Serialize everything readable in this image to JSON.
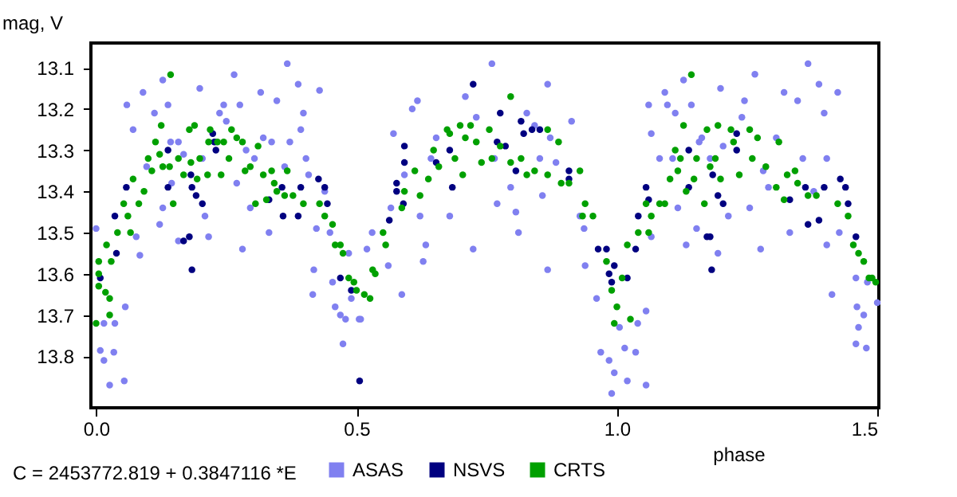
{
  "chart_data": {
    "type": "scatter",
    "xlabel": "phase",
    "ylabel": "mag, V",
    "annotations": [
      "C = 2453772.819 + 0.3847116 *E"
    ],
    "xlim": [
      -0.01,
      1.503
    ],
    "ylim": [
      13.925,
      13.04
    ],
    "xticks": [
      {
        "value": 0,
        "label": "0.0"
      },
      {
        "value": 0.5,
        "label": "0.5"
      },
      {
        "value": 1,
        "label": "1.0"
      },
      {
        "value": 1.5,
        "label": "1.5"
      }
    ],
    "yticks": [
      13.1,
      13.2,
      13.3,
      13.4,
      13.5,
      13.6,
      13.7,
      13.8
    ],
    "grid": false,
    "legend": "bottom",
    "marker": "circle",
    "series": [
      {
        "name": "ASAS",
        "color": "#8080f0",
        "x": [
          0.0,
          0.008,
          0.015,
          0.026,
          0.015,
          0.034,
          0.036,
          0.056,
          0.054,
          0.059,
          0.071,
          0.077,
          0.084,
          0.09,
          0.097,
          0.112,
          0.122,
          0.128,
          0.138,
          0.143,
          0.145,
          0.128,
          0.158,
          0.158,
          0.168,
          0.199,
          0.204,
          0.209,
          0.216,
          0.23,
          0.237,
          0.245,
          0.25,
          0.265,
          0.27,
          0.281,
          0.276,
          0.288,
          0.296,
          0.304,
          0.316,
          0.321,
          0.337,
          0.332,
          0.347,
          0.367,
          0.362,
          0.372,
          0.388,
          0.393,
          0.398,
          0.403,
          0.408,
          0.416,
          0.418,
          0.423,
          0.429,
          0.439,
          0.449,
          0.454,
          0.459,
          0.469,
          0.474,
          0.479,
          0.485,
          0.49,
          0.508,
          0.505,
          0.52,
          0.53,
          0.561,
          0.566,
          0.571,
          0.587,
          0.592,
          0.607,
          0.617,
          0.622,
          0.628,
          0.633,
          0.643,
          0.653,
          0.679,
          0.709,
          0.724,
          0.73,
          0.76,
          0.765,
          0.77,
          0.796,
          0.806,
          0.811,
          0.827,
          0.842,
          0.852,
          0.857,
          0.867,
          0.867,
          0.872,
          0.883,
          0.913,
          0.929,
          0.937,
          0.939,
          0.961,
          0.969,
          0.985,
          0.99,
          0.995,
          1.005,
          1.015,
          1.02,
          1.036,
          1.04,
          1.056,
          1.061,
          1.066,
          1.056,
          1.066,
          1.082,
          1.092,
          1.097,
          1.107,
          1.112,
          1.117,
          1.128,
          1.133,
          1.143,
          1.153,
          1.158,
          1.163,
          1.179,
          1.194,
          1.199,
          1.204,
          1.214,
          1.24,
          1.245,
          1.255,
          1.265,
          1.276,
          1.281,
          1.291,
          1.306,
          1.321,
          1.332,
          1.347,
          1.357,
          1.367,
          1.378,
          1.388,
          1.398,
          1.403,
          1.403,
          1.413,
          1.424,
          1.427,
          1.459,
          1.461,
          1.464,
          1.474,
          1.479,
          1.481,
          1.5,
          1.459
        ],
        "values": [
          13.49,
          13.786,
          13.81,
          13.87,
          13.72,
          13.79,
          13.72,
          13.68,
          13.86,
          13.19,
          13.25,
          13.51,
          13.555,
          13.16,
          13.34,
          13.21,
          13.48,
          13.13,
          13.19,
          13.28,
          13.38,
          13.44,
          13.28,
          13.52,
          13.31,
          13.15,
          13.32,
          13.46,
          13.51,
          13.28,
          13.21,
          13.19,
          13.23,
          13.117,
          13.38,
          13.54,
          13.19,
          13.3,
          13.44,
          13.32,
          13.16,
          13.27,
          13.28,
          13.5,
          13.18,
          13.09,
          13.34,
          13.28,
          13.14,
          13.25,
          13.21,
          13.32,
          13.36,
          13.65,
          13.59,
          13.49,
          13.155,
          13.4,
          13.5,
          13.62,
          13.68,
          13.7,
          13.77,
          13.71,
          13.55,
          13.66,
          13.71,
          13.71,
          13.54,
          13.5,
          13.58,
          13.44,
          13.26,
          13.65,
          13.36,
          13.2,
          13.18,
          13.46,
          13.57,
          13.53,
          13.32,
          13.27,
          13.46,
          13.17,
          13.54,
          13.22,
          13.09,
          13.32,
          13.43,
          13.39,
          13.45,
          13.5,
          13.21,
          13.24,
          13.32,
          13.41,
          13.14,
          13.59,
          13.27,
          13.33,
          13.23,
          13.46,
          13.49,
          13.58,
          13.66,
          13.79,
          13.81,
          13.89,
          13.84,
          13.73,
          13.78,
          13.86,
          13.79,
          13.72,
          13.87,
          13.19,
          13.26,
          13.69,
          13.51,
          13.32,
          13.16,
          13.19,
          13.32,
          13.21,
          13.44,
          13.13,
          13.53,
          13.19,
          13.49,
          13.28,
          13.27,
          13.32,
          13.55,
          13.15,
          13.29,
          13.46,
          13.22,
          13.18,
          13.44,
          13.116,
          13.54,
          13.35,
          13.39,
          13.27,
          13.16,
          13.5,
          13.18,
          13.32,
          13.09,
          13.4,
          13.14,
          13.21,
          13.32,
          13.53,
          13.65,
          13.16,
          13.5,
          13.61,
          13.68,
          13.73,
          13.7,
          13.78,
          13.62,
          13.67,
          13.77
        ]
      },
      {
        "name": "NSVS",
        "color": "#000080",
        "x": [
          0.008,
          0.036,
          0.039,
          0.058,
          0.138,
          0.138,
          0.168,
          0.179,
          0.184,
          0.182,
          0.184,
          0.192,
          0.204,
          0.224,
          0.227,
          0.23,
          0.332,
          0.357,
          0.359,
          0.388,
          0.393,
          0.427,
          0.439,
          0.444,
          0.469,
          0.506,
          0.49,
          0.563,
          0.577,
          0.577,
          0.59,
          0.592,
          0.592,
          0.653,
          0.679,
          0.684,
          0.724,
          0.77,
          0.776,
          0.786,
          0.806,
          0.816,
          0.821,
          0.837,
          0.852,
          0.908,
          0.908,
          0.964,
          0.98,
          0.985,
          0.99,
          0.995,
          1.02,
          1.036,
          1.041,
          1.056,
          1.061,
          1.138,
          1.138,
          1.173,
          1.179,
          1.182,
          1.184,
          1.194,
          1.204,
          1.23,
          1.23,
          1.332,
          1.362,
          1.367,
          1.388,
          1.398,
          1.429,
          1.439,
          1.444,
          1.459
        ],
        "values": [
          13.61,
          13.46,
          13.55,
          13.39,
          13.3,
          13.39,
          13.52,
          13.51,
          13.59,
          13.36,
          13.39,
          13.41,
          13.43,
          13.26,
          13.28,
          13.3,
          13.42,
          13.39,
          13.46,
          13.46,
          13.39,
          13.37,
          13.39,
          13.43,
          13.61,
          13.86,
          13.64,
          13.47,
          13.38,
          13.4,
          13.43,
          13.29,
          13.33,
          13.33,
          13.3,
          13.39,
          13.14,
          13.28,
          13.21,
          13.29,
          13.35,
          13.23,
          13.26,
          13.25,
          13.25,
          13.35,
          13.37,
          13.54,
          13.54,
          13.6,
          13.62,
          13.58,
          13.61,
          13.54,
          13.46,
          13.39,
          13.42,
          13.3,
          13.39,
          13.51,
          13.51,
          13.59,
          13.36,
          13.41,
          13.43,
          13.26,
          13.3,
          13.42,
          13.39,
          13.48,
          13.47,
          13.39,
          13.37,
          13.39,
          13.43,
          13.51
        ]
      },
      {
        "name": "CRTS",
        "color": "#00a000",
        "x": [
          0.0,
          0.005,
          0.005,
          0.005,
          0.018,
          0.02,
          0.026,
          0.026,
          0.029,
          0.041,
          0.053,
          0.061,
          0.066,
          0.071,
          0.082,
          0.092,
          0.1,
          0.107,
          0.114,
          0.122,
          0.125,
          0.128,
          0.143,
          0.141,
          0.148,
          0.158,
          0.168,
          0.179,
          0.182,
          0.189,
          0.194,
          0.199,
          0.214,
          0.216,
          0.219,
          0.233,
          0.24,
          0.245,
          0.255,
          0.26,
          0.27,
          0.281,
          0.286,
          0.296,
          0.306,
          0.311,
          0.321,
          0.327,
          0.337,
          0.342,
          0.347,
          0.362,
          0.367,
          0.378,
          0.398,
          0.429,
          0.439,
          0.454,
          0.459,
          0.469,
          0.474,
          0.485,
          0.495,
          0.5,
          0.531,
          0.536,
          0.515,
          0.526,
          0.551,
          0.556,
          0.587,
          0.592,
          0.612,
          0.622,
          0.638,
          0.648,
          0.658,
          0.674,
          0.679,
          0.689,
          0.699,
          0.704,
          0.709,
          0.719,
          0.73,
          0.74,
          0.755,
          0.76,
          0.776,
          0.796,
          0.796,
          0.816,
          0.827,
          0.842,
          0.867,
          0.867,
          0.888,
          0.893,
          0.908,
          0.929,
          0.939,
          0.934,
          0.954,
          0.98,
          0.99,
          1.0,
          0.995,
          1.01,
          1.02,
          1.026,
          1.041,
          1.056,
          1.066,
          1.061,
          1.082,
          1.092,
          1.102,
          1.112,
          1.117,
          1.122,
          1.128,
          1.133,
          1.143,
          1.148,
          1.153,
          1.168,
          1.173,
          1.179,
          1.189,
          1.194,
          1.199,
          1.219,
          1.224,
          1.235,
          1.255,
          1.26,
          1.27,
          1.286,
          1.306,
          1.311,
          1.321,
          1.327,
          1.342,
          1.347,
          1.367,
          1.383,
          1.424,
          1.444,
          1.454,
          1.464,
          1.474,
          1.484,
          1.49,
          1.497
        ],
        "values": [
          13.72,
          13.57,
          13.63,
          13.6,
          13.645,
          13.53,
          13.7,
          13.66,
          13.57,
          13.5,
          13.43,
          13.46,
          13.5,
          13.37,
          13.43,
          13.4,
          13.32,
          13.35,
          13.28,
          13.31,
          13.24,
          13.34,
          13.117,
          13.34,
          13.43,
          13.32,
          13.36,
          13.25,
          13.33,
          13.24,
          13.37,
          13.32,
          13.36,
          13.28,
          13.25,
          13.28,
          13.36,
          13.28,
          13.32,
          13.25,
          13.27,
          13.28,
          13.35,
          13.34,
          13.43,
          13.29,
          13.36,
          13.42,
          13.35,
          13.38,
          13.4,
          13.41,
          13.35,
          13.41,
          13.43,
          13.43,
          13.46,
          13.48,
          13.53,
          13.53,
          13.55,
          13.61,
          13.62,
          13.64,
          13.59,
          13.6,
          13.65,
          13.66,
          13.5,
          13.53,
          13.44,
          13.4,
          13.35,
          13.41,
          13.37,
          13.3,
          13.34,
          13.25,
          13.26,
          13.32,
          13.24,
          13.36,
          13.27,
          13.24,
          13.28,
          13.33,
          13.25,
          13.32,
          13.29,
          13.17,
          13.33,
          13.32,
          13.36,
          13.35,
          13.25,
          13.36,
          13.28,
          13.38,
          13.38,
          13.35,
          13.43,
          13.46,
          13.46,
          13.57,
          13.64,
          13.68,
          13.72,
          13.61,
          13.53,
          13.71,
          13.5,
          13.43,
          13.46,
          13.5,
          13.43,
          13.43,
          13.37,
          13.3,
          13.35,
          13.32,
          13.24,
          13.4,
          13.117,
          13.37,
          13.32,
          13.43,
          13.25,
          13.34,
          13.32,
          13.24,
          13.37,
          13.25,
          13.28,
          13.36,
          13.25,
          13.32,
          13.27,
          13.34,
          13.39,
          13.28,
          13.42,
          13.36,
          13.35,
          13.38,
          13.41,
          13.41,
          13.43,
          13.46,
          13.53,
          13.55,
          13.57,
          13.61,
          13.61,
          13.62
        ]
      }
    ]
  }
}
